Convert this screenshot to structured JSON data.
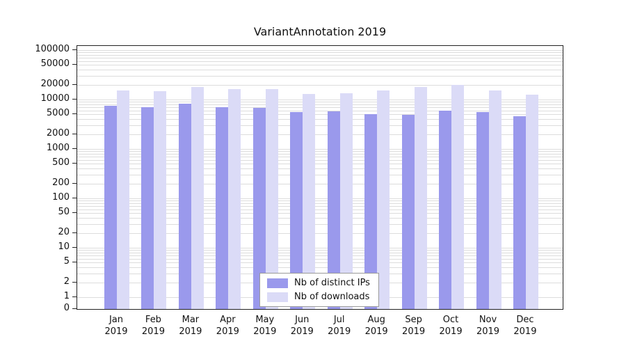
{
  "title": "VariantAnnotation 2019",
  "chart_data": {
    "type": "bar",
    "title": "VariantAnnotation 2019",
    "xlabel": "",
    "ylabel": "",
    "scale": "log",
    "grid": true,
    "legend_position": "bottom-center",
    "categories": [
      "Jan",
      "Feb",
      "Mar",
      "Apr",
      "May",
      "Jun",
      "Jul",
      "Aug",
      "Sep",
      "Oct",
      "Nov",
      "Dec"
    ],
    "year_label": "2019",
    "yticks": [
      0,
      1,
      2,
      5,
      10,
      20,
      50,
      100,
      200,
      500,
      1000,
      2000,
      5000,
      10000,
      20000,
      50000,
      100000
    ],
    "ylim": [
      0,
      100000
    ],
    "series": [
      {
        "name": "Nb of distinct IPs",
        "color": "#9a99ec",
        "values": [
          7500,
          7000,
          8200,
          7100,
          6800,
          5600,
          5700,
          5100,
          4900,
          5900,
          5600,
          4600
        ]
      },
      {
        "name": "Nb of downloads",
        "color": "#dbdbf7",
        "values": [
          15300,
          15000,
          17900,
          16200,
          16300,
          13000,
          13400,
          15300,
          17800,
          19800,
          15200,
          12600
        ]
      }
    ]
  }
}
